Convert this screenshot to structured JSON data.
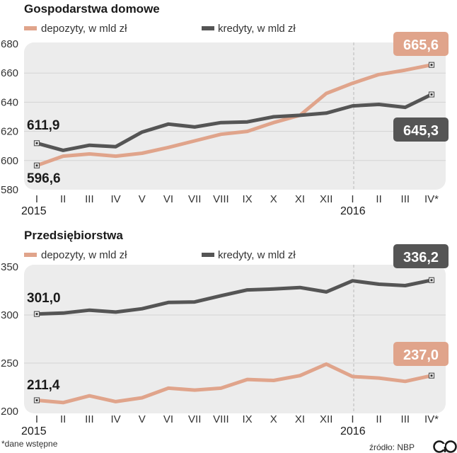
{
  "chart_data": [
    {
      "type": "line",
      "title": "Gospodarstwa domowe",
      "categories": [
        "I",
        "II",
        "III",
        "IV",
        "V",
        "VI",
        "VII",
        "VIII",
        "IX",
        "X",
        "XI",
        "XII",
        "I",
        "II",
        "III",
        "IV*"
      ],
      "years": [
        {
          "label": "2015",
          "index": 0
        },
        {
          "label": "2016",
          "index": 12
        }
      ],
      "ylim": [
        580,
        680
      ],
      "yticks": [
        580,
        600,
        620,
        640,
        660,
        680
      ],
      "series": [
        {
          "name": "depozyty, w mld zł",
          "color": "#e0a48b",
          "values": [
            596.6,
            603,
            604.5,
            603,
            605,
            609,
            613.5,
            618,
            620,
            626,
            631,
            646,
            653,
            659,
            662,
            665.6
          ]
        },
        {
          "name": "kredyty, w mld zł",
          "color": "#555555",
          "values": [
            611.9,
            607,
            610.5,
            609.5,
            619.5,
            625,
            623,
            626,
            626.5,
            630,
            631,
            632.5,
            637.5,
            638.5,
            636.5,
            645.3
          ]
        }
      ],
      "labels": {
        "first_dep": "596,6",
        "first_kred": "611,9",
        "last_dep": "665,6",
        "last_kred": "645,3"
      }
    },
    {
      "type": "line",
      "title": "Przedsiębiorstwa",
      "categories": [
        "I",
        "II",
        "III",
        "IV",
        "V",
        "VI",
        "VII",
        "VIII",
        "IX",
        "X",
        "XI",
        "XII",
        "I",
        "II",
        "III",
        "IV*"
      ],
      "years": [
        {
          "label": "2015",
          "index": 0
        },
        {
          "label": "2016",
          "index": 12
        }
      ],
      "ylim": [
        200,
        350
      ],
      "yticks": [
        200,
        250,
        300,
        350
      ],
      "series": [
        {
          "name": "depozyty, w mld zł",
          "color": "#e0a48b",
          "values": [
            211.4,
            209,
            216,
            210,
            214,
            224,
            222,
            224,
            233,
            232,
            237,
            249,
            236,
            234.5,
            231,
            237
          ]
        },
        {
          "name": "kredyty, w mld zł",
          "color": "#555555",
          "values": [
            301,
            302,
            305,
            303,
            306.5,
            313,
            313.5,
            320,
            326,
            327,
            328.5,
            324,
            335.5,
            332,
            330.5,
            336.2
          ]
        }
      ],
      "labels": {
        "first_dep": "211,4",
        "first_kred": "301,0",
        "last_dep": "237,0",
        "last_kred": "336,2"
      }
    }
  ],
  "footer": {
    "note": "*dane wstępne",
    "source": "źródło: NBP",
    "logo_text": "CP"
  }
}
